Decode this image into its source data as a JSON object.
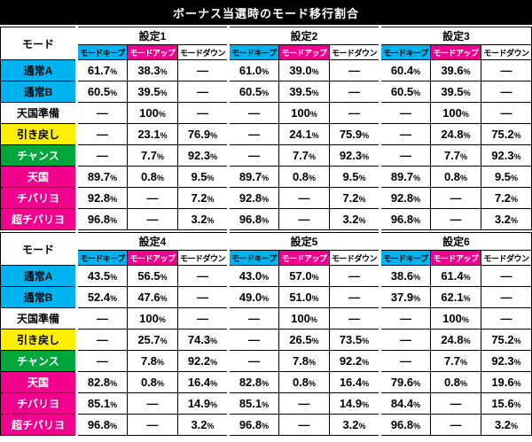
{
  "title": "ボーナス当選時のモード移行割合",
  "colors": {
    "cyan": "#00b3ef",
    "magenta": "#f1008d",
    "yellow": "#fff000",
    "green": "#00a53c",
    "title_bg": "#000000",
    "title_text": "#ffffff"
  },
  "chart_data": {
    "type": "table",
    "title": "ボーナス当選時のモード移行割合",
    "corner_header": "モード",
    "sub_headers": [
      "モードキープ",
      "モードアップ",
      "モードダウン"
    ],
    "sections": [
      {
        "settings": [
          "設定1",
          "設定2",
          "設定3"
        ],
        "rows": [
          {
            "label": "通常A",
            "style": "cyan",
            "cells": [
              "61.7%",
              "38.3%",
              "—",
              "61.0%",
              "39.0%",
              "—",
              "60.4%",
              "39.6%",
              "—"
            ]
          },
          {
            "label": "通常B",
            "style": "cyan",
            "cells": [
              "60.5%",
              "39.5%",
              "—",
              "60.5%",
              "39.5%",
              "—",
              "60.5%",
              "39.5%",
              "—"
            ]
          },
          {
            "label": "天国準備",
            "style": "white",
            "cells": [
              "—",
              "100%",
              "—",
              "—",
              "100%",
              "—",
              "—",
              "100%",
              "—"
            ]
          },
          {
            "label": "引き戻し",
            "style": "yellow",
            "cells": [
              "—",
              "23.1%",
              "76.9%",
              "—",
              "24.1%",
              "75.9%",
              "—",
              "24.8%",
              "75.2%"
            ]
          },
          {
            "label": "チャンス",
            "style": "green",
            "cells": [
              "—",
              "7.7%",
              "92.3%",
              "—",
              "7.7%",
              "92.3%",
              "—",
              "7.7%",
              "92.3%"
            ]
          },
          {
            "label": "天国",
            "style": "magenta",
            "cells": [
              "89.7%",
              "0.8%",
              "9.5%",
              "89.7%",
              "0.8%",
              "9.5%",
              "89.7%",
              "0.8%",
              "9.5%"
            ]
          },
          {
            "label": "チバリヨ",
            "style": "magenta",
            "cells": [
              "92.8%",
              "—",
              "7.2%",
              "92.8%",
              "—",
              "7.2%",
              "92.8%",
              "—",
              "7.2%"
            ]
          },
          {
            "label": "超チバリヨ",
            "style": "magenta",
            "cells": [
              "96.8%",
              "—",
              "3.2%",
              "96.8%",
              "—",
              "3.2%",
              "96.8%",
              "—",
              "3.2%"
            ]
          }
        ]
      },
      {
        "settings": [
          "設定4",
          "設定5",
          "設定6"
        ],
        "rows": [
          {
            "label": "通常A",
            "style": "cyan",
            "cells": [
              "43.5%",
              "56.5%",
              "—",
              "43.0%",
              "57.0%",
              "—",
              "38.6%",
              "61.4%",
              "—"
            ]
          },
          {
            "label": "通常B",
            "style": "cyan",
            "cells": [
              "52.4%",
              "47.6%",
              "—",
              "49.0%",
              "51.0%",
              "—",
              "37.9%",
              "62.1%",
              "—"
            ]
          },
          {
            "label": "天国準備",
            "style": "white",
            "cells": [
              "—",
              "100%",
              "—",
              "—",
              "100%",
              "—",
              "—",
              "100%",
              "—"
            ]
          },
          {
            "label": "引き戻し",
            "style": "yellow",
            "cells": [
              "—",
              "25.7%",
              "74.3%",
              "—",
              "26.5%",
              "73.5%",
              "—",
              "24.8%",
              "75.2%"
            ]
          },
          {
            "label": "チャンス",
            "style": "green",
            "cells": [
              "—",
              "7.8%",
              "92.2%",
              "—",
              "7.8%",
              "92.2%",
              "—",
              "7.7%",
              "92.3%"
            ]
          },
          {
            "label": "天国",
            "style": "magenta",
            "cells": [
              "82.8%",
              "0.8%",
              "16.4%",
              "82.8%",
              "0.8%",
              "16.4%",
              "79.6%",
              "0.8%",
              "19.6%"
            ]
          },
          {
            "label": "チバリヨ",
            "style": "magenta",
            "cells": [
              "85.1%",
              "—",
              "14.9%",
              "85.1%",
              "—",
              "14.9%",
              "84.4%",
              "—",
              "15.6%"
            ]
          },
          {
            "label": "超チバリヨ",
            "style": "magenta",
            "cells": [
              "96.8%",
              "—",
              "3.2%",
              "96.8%",
              "—",
              "3.2%",
              "96.8%",
              "—",
              "3.2%"
            ]
          }
        ]
      }
    ]
  }
}
